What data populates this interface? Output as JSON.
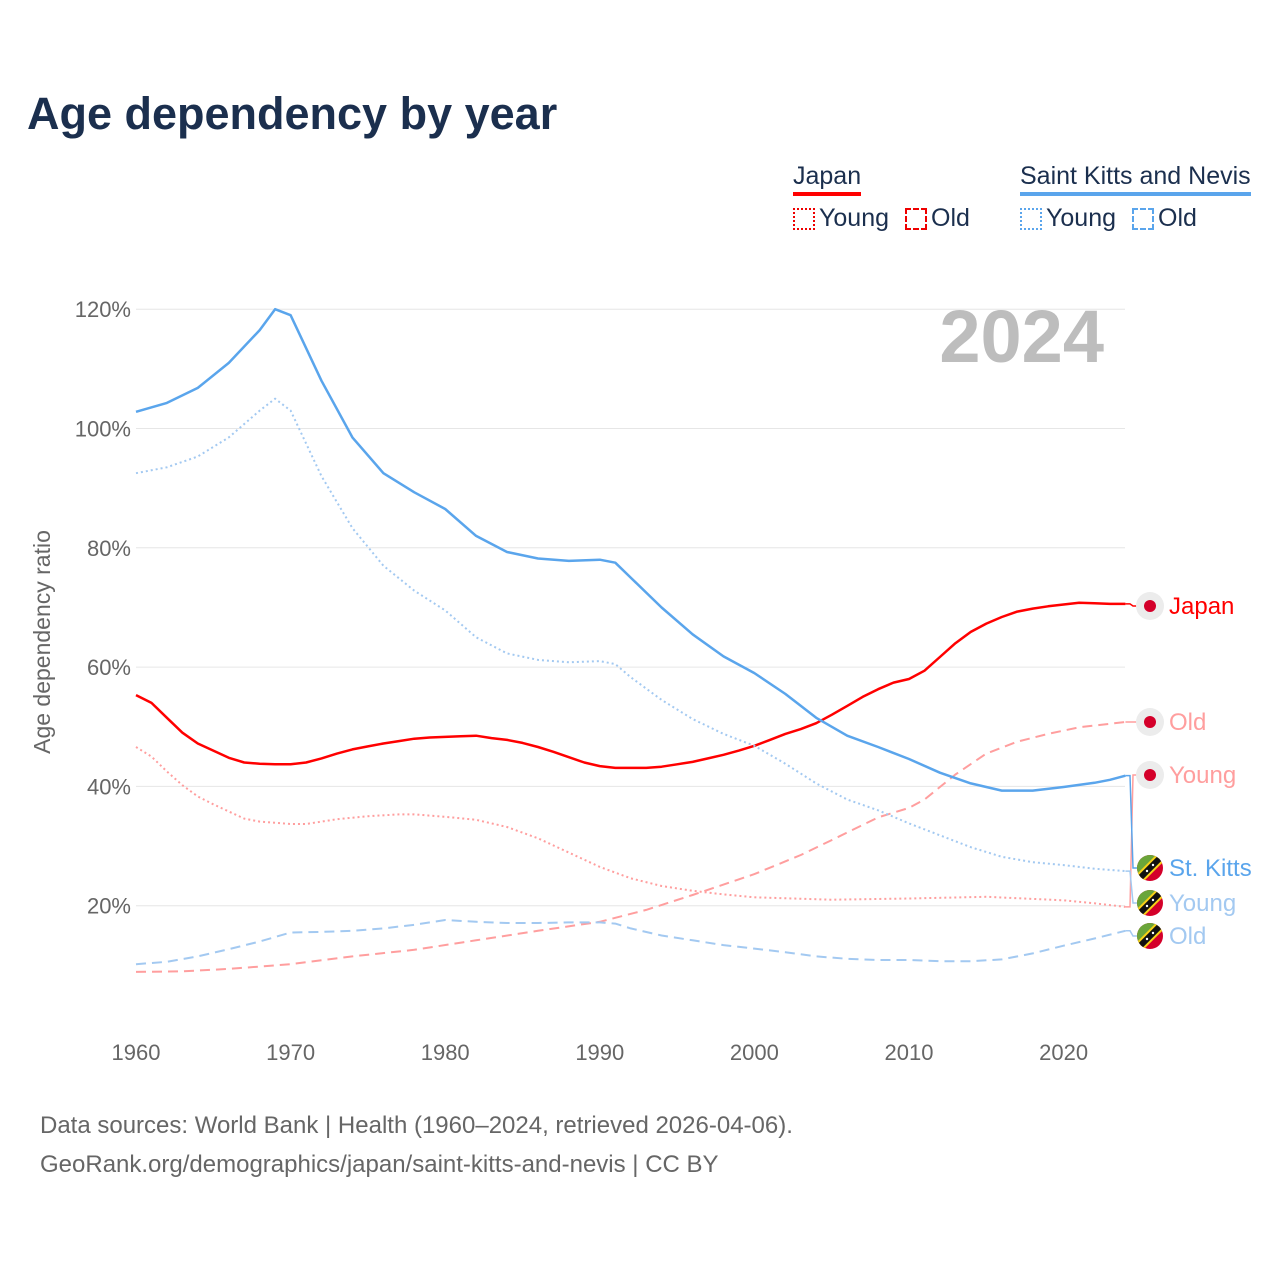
{
  "title": "Age dependency by year",
  "legend": {
    "groups": [
      {
        "country": "Japan",
        "color": "#ff0000",
        "items": [
          {
            "label": "Young",
            "style": "dotted"
          },
          {
            "label": "Old",
            "style": "dashed"
          }
        ]
      },
      {
        "country": "Saint Kitts and Nevis",
        "color": "#5aa5ec",
        "items": [
          {
            "label": "Young",
            "style": "dotted"
          },
          {
            "label": "Old",
            "style": "dashed"
          }
        ]
      }
    ]
  },
  "year_watermark": "2024",
  "footer": {
    "line1": "Data sources: World Bank | Health (1960–2024, retrieved 2026-04-06).",
    "line2": "GeoRank.org/demographics/japan/saint-kitts-and-nevis | CC BY"
  },
  "chart_data": {
    "type": "line",
    "title": "Age dependency by year",
    "xlabel": "",
    "ylabel": "Age dependency ratio",
    "xlim": [
      1960,
      2024
    ],
    "ylim": [
      0,
      125
    ],
    "x_ticks": [
      "1960",
      "1970",
      "1980",
      "1990",
      "2000",
      "2010",
      "2020"
    ],
    "y_ticks": [
      "20%",
      "40%",
      "60%",
      "80%",
      "100%",
      "120%"
    ],
    "grid": true,
    "series": [
      {
        "name": "Japan",
        "end_label": "Japan",
        "flag": "japan",
        "color": "#ff0000",
        "style": "solid",
        "points": [
          [
            1960,
            55.3
          ],
          [
            1961,
            54
          ],
          [
            1962,
            51.5
          ],
          [
            1963,
            49
          ],
          [
            1964,
            47.2
          ],
          [
            1965,
            46
          ],
          [
            1966,
            44.8
          ],
          [
            1967,
            44
          ],
          [
            1968,
            43.8
          ],
          [
            1969,
            43.7
          ],
          [
            1970,
            43.7
          ],
          [
            1971,
            44
          ],
          [
            1972,
            44.7
          ],
          [
            1973,
            45.5
          ],
          [
            1974,
            46.2
          ],
          [
            1975,
            46.7
          ],
          [
            1976,
            47.2
          ],
          [
            1977,
            47.6
          ],
          [
            1978,
            48
          ],
          [
            1979,
            48.2
          ],
          [
            1980,
            48.3
          ],
          [
            1981,
            48.4
          ],
          [
            1982,
            48.5
          ],
          [
            1983,
            48.1
          ],
          [
            1984,
            47.8
          ],
          [
            1985,
            47.3
          ],
          [
            1986,
            46.6
          ],
          [
            1987,
            45.8
          ],
          [
            1988,
            44.9
          ],
          [
            1989,
            44
          ],
          [
            1990,
            43.4
          ],
          [
            1991,
            43.1
          ],
          [
            1992,
            43.1
          ],
          [
            1993,
            43.1
          ],
          [
            1994,
            43.3
          ],
          [
            1995,
            43.7
          ],
          [
            1996,
            44.1
          ],
          [
            1997,
            44.7
          ],
          [
            1998,
            45.3
          ],
          [
            1999,
            46
          ],
          [
            2000,
            46.8
          ],
          [
            2001,
            47.8
          ],
          [
            2002,
            48.8
          ],
          [
            2003,
            49.6
          ],
          [
            2004,
            50.6
          ],
          [
            2005,
            52
          ],
          [
            2006,
            53.5
          ],
          [
            2007,
            55
          ],
          [
            2008,
            56.3
          ],
          [
            2009,
            57.4
          ],
          [
            2010,
            58
          ],
          [
            2011,
            59.4
          ],
          [
            2012,
            61.7
          ],
          [
            2013,
            64
          ],
          [
            2014,
            65.9
          ],
          [
            2015,
            67.3
          ],
          [
            2016,
            68.4
          ],
          [
            2017,
            69.3
          ],
          [
            2018,
            69.8
          ],
          [
            2019,
            70.2
          ],
          [
            2020,
            70.5
          ],
          [
            2021,
            70.8
          ],
          [
            2022,
            70.7
          ],
          [
            2023,
            70.6
          ],
          [
            2024,
            70.6
          ]
        ]
      },
      {
        "name": "Japan Old",
        "end_label": "Old",
        "flag": "japan",
        "color": "#ff9e9e",
        "style": "dashed",
        "points": [
          [
            1960,
            8.9
          ],
          [
            1963,
            9
          ],
          [
            1966,
            9.4
          ],
          [
            1970,
            10.2
          ],
          [
            1974,
            11.5
          ],
          [
            1978,
            12.6
          ],
          [
            1982,
            14.2
          ],
          [
            1986,
            15.8
          ],
          [
            1990,
            17.3
          ],
          [
            1993,
            19.3
          ],
          [
            1996,
            21.8
          ],
          [
            2000,
            25.3
          ],
          [
            2003,
            28.5
          ],
          [
            2005,
            31
          ],
          [
            2008,
            34.8
          ],
          [
            2010,
            36.4
          ],
          [
            2011,
            37.8
          ],
          [
            2013,
            42
          ],
          [
            2015,
            45.5
          ],
          [
            2017,
            47.5
          ],
          [
            2019,
            48.8
          ],
          [
            2021,
            49.9
          ],
          [
            2024,
            50.8
          ]
        ]
      },
      {
        "name": "Japan Young",
        "end_label": "Young",
        "flag": "japan",
        "color": "#ff9e9e",
        "style": "dotted",
        "points": [
          [
            1960,
            46.6
          ],
          [
            1961,
            45
          ],
          [
            1962,
            42.5
          ],
          [
            1963,
            40.2
          ],
          [
            1964,
            38.3
          ],
          [
            1965,
            37
          ],
          [
            1966,
            35.8
          ],
          [
            1967,
            34.6
          ],
          [
            1968,
            34.1
          ],
          [
            1970,
            33.7
          ],
          [
            1971,
            33.7
          ],
          [
            1973,
            34.5
          ],
          [
            1975,
            35
          ],
          [
            1977,
            35.3
          ],
          [
            1978,
            35.3
          ],
          [
            1980,
            34.9
          ],
          [
            1982,
            34.4
          ],
          [
            1984,
            33.2
          ],
          [
            1986,
            31.3
          ],
          [
            1988,
            28.9
          ],
          [
            1990,
            26.5
          ],
          [
            1992,
            24.6
          ],
          [
            1994,
            23.3
          ],
          [
            1996,
            22.5
          ],
          [
            1998,
            21.9
          ],
          [
            2000,
            21.4
          ],
          [
            2005,
            21
          ],
          [
            2010,
            21.2
          ],
          [
            2015,
            21.5
          ],
          [
            2020,
            20.9
          ],
          [
            2022,
            20.4
          ],
          [
            2024,
            19.8
          ]
        ]
      },
      {
        "name": "St. Kitts",
        "end_label": "St. Kitts",
        "flag": "skn",
        "color": "#5aa5ec",
        "style": "solid",
        "points": [
          [
            1960,
            102.8
          ],
          [
            1962,
            104.3
          ],
          [
            1964,
            106.8
          ],
          [
            1966,
            111
          ],
          [
            1968,
            116.5
          ],
          [
            1969,
            120
          ],
          [
            1970,
            119
          ],
          [
            1972,
            108
          ],
          [
            1974,
            98.5
          ],
          [
            1976,
            92.5
          ],
          [
            1978,
            89.3
          ],
          [
            1980,
            86.5
          ],
          [
            1982,
            82
          ],
          [
            1984,
            79.3
          ],
          [
            1986,
            78.2
          ],
          [
            1988,
            77.8
          ],
          [
            1990,
            78
          ],
          [
            1991,
            77.5
          ],
          [
            1992,
            75
          ],
          [
            1994,
            70
          ],
          [
            1996,
            65.5
          ],
          [
            1998,
            61.8
          ],
          [
            2000,
            59
          ],
          [
            2002,
            55.5
          ],
          [
            2004,
            51.5
          ],
          [
            2006,
            48.5
          ],
          [
            2008,
            46.6
          ],
          [
            2010,
            44.6
          ],
          [
            2012,
            42.3
          ],
          [
            2014,
            40.5
          ],
          [
            2016,
            39.3
          ],
          [
            2018,
            39.3
          ],
          [
            2020,
            39.9
          ],
          [
            2022,
            40.6
          ],
          [
            2023,
            41.1
          ],
          [
            2024,
            41.8
          ]
        ]
      },
      {
        "name": "St. Kitts Young",
        "end_label": "Young",
        "flag": "skn",
        "color": "#a3c9f1",
        "style": "dotted",
        "points": [
          [
            1960,
            92.5
          ],
          [
            1962,
            93.5
          ],
          [
            1964,
            95.3
          ],
          [
            1966,
            98.5
          ],
          [
            1968,
            103
          ],
          [
            1969,
            105
          ],
          [
            1970,
            103
          ],
          [
            1972,
            92
          ],
          [
            1974,
            83.3
          ],
          [
            1976,
            77
          ],
          [
            1978,
            72.8
          ],
          [
            1980,
            69.5
          ],
          [
            1982,
            65
          ],
          [
            1984,
            62.3
          ],
          [
            1986,
            61.2
          ],
          [
            1988,
            60.8
          ],
          [
            1990,
            61
          ],
          [
            1991,
            60.5
          ],
          [
            1992,
            58.3
          ],
          [
            1994,
            54.5
          ],
          [
            1996,
            51.3
          ],
          [
            1998,
            48.8
          ],
          [
            2000,
            46.8
          ],
          [
            2002,
            43.8
          ],
          [
            2004,
            40.5
          ],
          [
            2006,
            37.8
          ],
          [
            2008,
            36
          ],
          [
            2010,
            33.8
          ],
          [
            2012,
            31.8
          ],
          [
            2014,
            29.8
          ],
          [
            2016,
            28.2
          ],
          [
            2018,
            27.3
          ],
          [
            2020,
            26.8
          ],
          [
            2022,
            26.2
          ],
          [
            2024,
            25.8
          ]
        ]
      },
      {
        "name": "St. Kitts Old",
        "end_label": "Old",
        "flag": "skn",
        "color": "#a3c9f1",
        "style": "dashed",
        "points": [
          [
            1960,
            10.2
          ],
          [
            1962,
            10.6
          ],
          [
            1964,
            11.5
          ],
          [
            1966,
            12.7
          ],
          [
            1968,
            14
          ],
          [
            1970,
            15.5
          ],
          [
            1972,
            15.6
          ],
          [
            1974,
            15.8
          ],
          [
            1976,
            16.2
          ],
          [
            1978,
            16.8
          ],
          [
            1980,
            17.6
          ],
          [
            1982,
            17.3
          ],
          [
            1984,
            17.1
          ],
          [
            1986,
            17.1
          ],
          [
            1988,
            17.2
          ],
          [
            1990,
            17.2
          ],
          [
            1991,
            17
          ],
          [
            1992,
            16.2
          ],
          [
            1994,
            15
          ],
          [
            1996,
            14.2
          ],
          [
            1998,
            13.4
          ],
          [
            2000,
            12.8
          ],
          [
            2002,
            12.2
          ],
          [
            2004,
            11.5
          ],
          [
            2006,
            11.1
          ],
          [
            2008,
            10.9
          ],
          [
            2010,
            10.9
          ],
          [
            2012,
            10.7
          ],
          [
            2014,
            10.7
          ],
          [
            2016,
            11
          ],
          [
            2018,
            12
          ],
          [
            2020,
            13.3
          ],
          [
            2022,
            14.5
          ],
          [
            2024,
            15.8
          ]
        ]
      }
    ]
  }
}
